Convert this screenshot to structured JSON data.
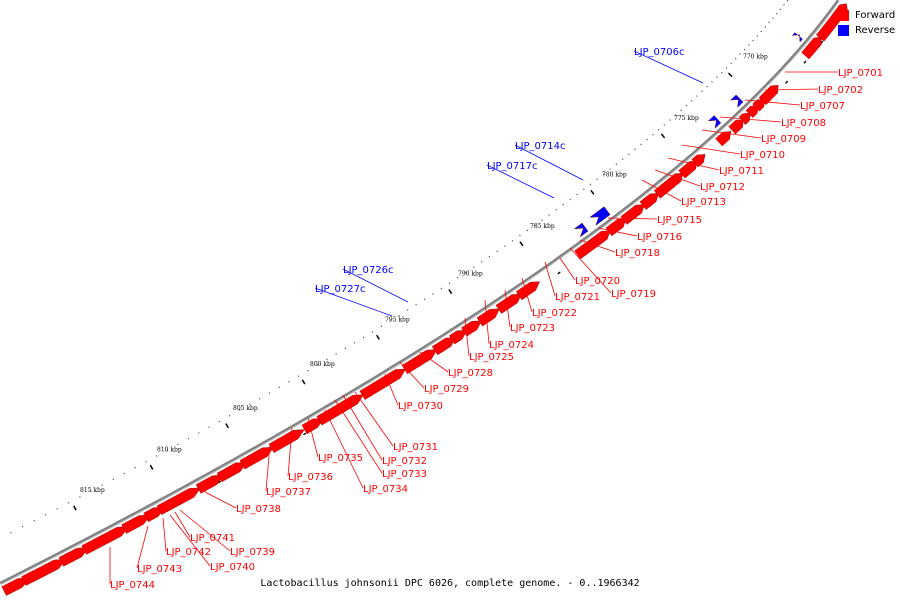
{
  "colors": {
    "forward": "#ff0000",
    "reverse": "#0000ff",
    "backbone": "#808080"
  },
  "legend": [
    {
      "label": "Forward",
      "color": "#ff0000"
    },
    {
      "label": "Reverse",
      "color": "#0000ff"
    }
  ],
  "caption": "Lactobacillus johnsonii DPC 6026, complete genome. - 0..1966342",
  "ticks": [
    "770 kbp",
    "775 kbp",
    "780 kbp",
    "785 kbp",
    "790 kbp",
    "795 kbp",
    "800 kbp",
    "805 kbp",
    "810 kbp",
    "815 kbp"
  ],
  "forward_genes": [
    "LJP_0701",
    "LJP_0702",
    "LJP_0707",
    "LJP_0708",
    "LJP_0709",
    "LJP_0710",
    "LJP_0711",
    "LJP_0712",
    "LJP_0713",
    "LJP_0715",
    "LJP_0716",
    "LJP_0718",
    "LJP_0720",
    "LJP_0719",
    "LJP_0721",
    "LJP_0722",
    "LJP_0723",
    "LJP_0724",
    "LJP_0725",
    "LJP_0728",
    "LJP_0729",
    "LJP_0730",
    "LJP_0731",
    "LJP_0732",
    "LJP_0733",
    "LJP_0734",
    "LJP_0735",
    "LJP_0736",
    "LJP_0737",
    "LJP_0738",
    "LJP_0739",
    "LJP_0740",
    "LJP_0741",
    "LJP_0742",
    "LJP_0743",
    "LJP_0744"
  ],
  "reverse_genes": [
    "LJP_0706c",
    "LJP_0714c",
    "LJP_0717c",
    "LJP_0726c",
    "LJP_0727c"
  ]
}
